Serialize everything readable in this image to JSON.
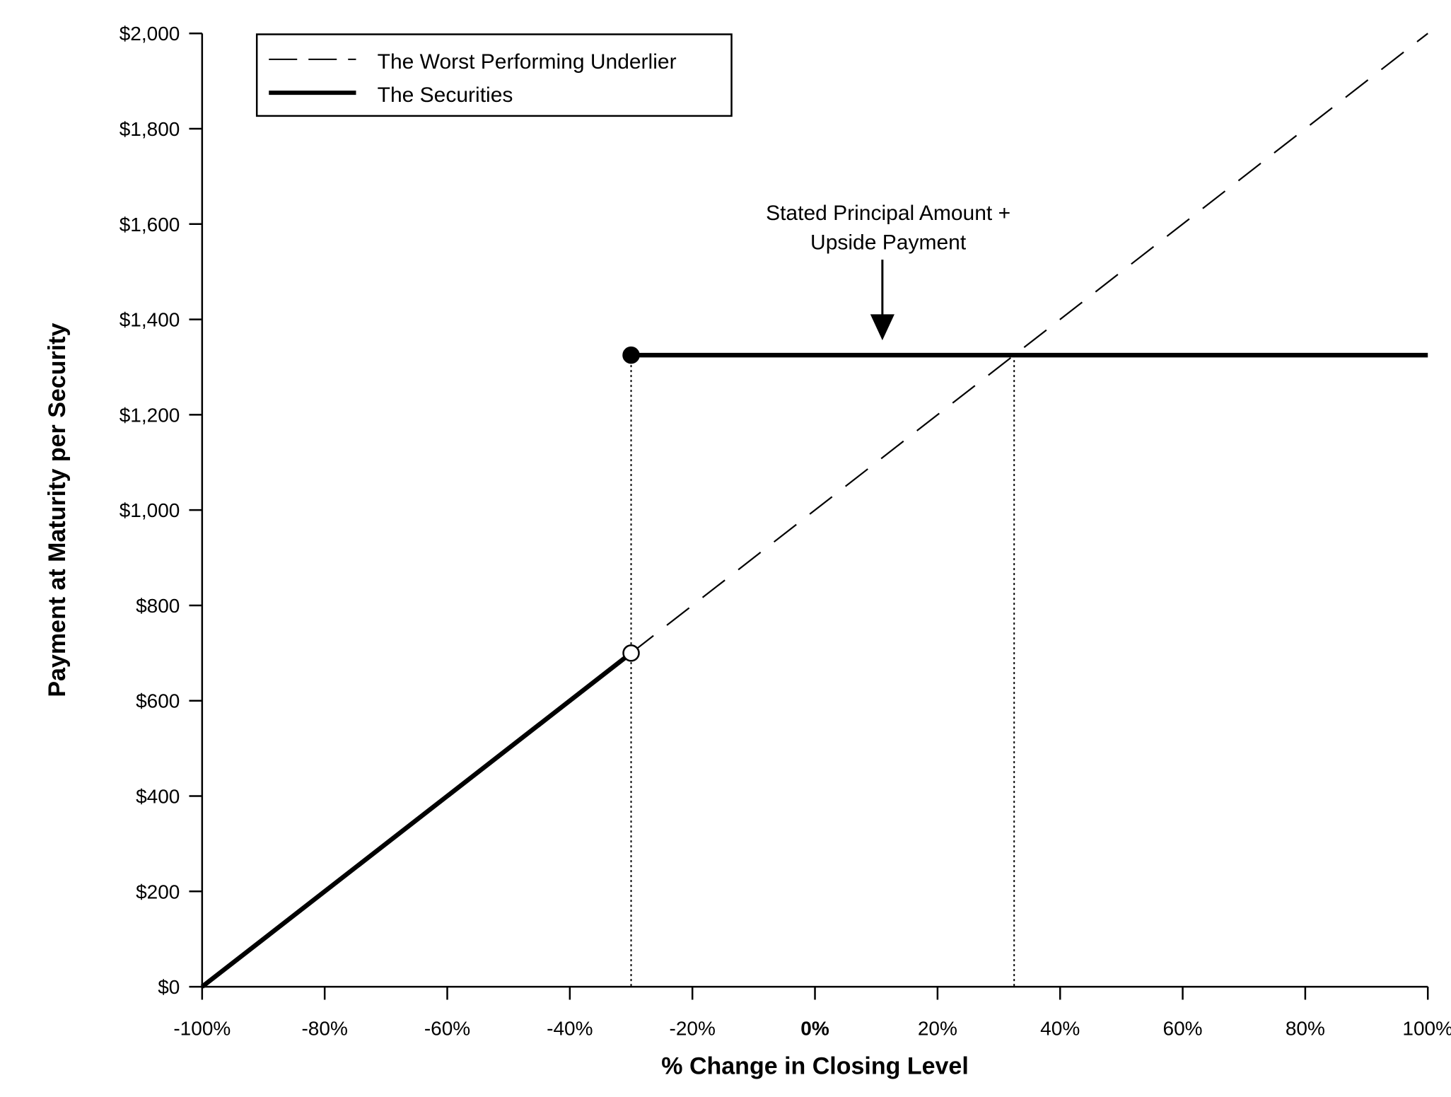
{
  "chart_data": {
    "type": "line",
    "title": "",
    "xlabel": "% Change in Closing Level",
    "ylabel": "Payment at Maturity per Security",
    "xlim": [
      -100,
      100
    ],
    "ylim": [
      0,
      2000
    ],
    "x_ticks": [
      {
        "value": -100,
        "label": "-100%"
      },
      {
        "value": -80,
        "label": "-80%"
      },
      {
        "value": -60,
        "label": "-60%"
      },
      {
        "value": -40,
        "label": "-40%"
      },
      {
        "value": -20,
        "label": "-20%"
      },
      {
        "value": 0,
        "label": "0%",
        "bold": true
      },
      {
        "value": 20,
        "label": "20%"
      },
      {
        "value": 40,
        "label": "40%"
      },
      {
        "value": 60,
        "label": "60%"
      },
      {
        "value": 80,
        "label": "80%"
      },
      {
        "value": 100,
        "label": "100%"
      }
    ],
    "y_ticks": [
      {
        "value": 0,
        "label": "$0"
      },
      {
        "value": 200,
        "label": "$200"
      },
      {
        "value": 400,
        "label": "$400"
      },
      {
        "value": 600,
        "label": "$600"
      },
      {
        "value": 800,
        "label": "$800"
      },
      {
        "value": 1000,
        "label": "$1,000"
      },
      {
        "value": 1200,
        "label": "$1,200"
      },
      {
        "value": 1400,
        "label": "$1,400"
      },
      {
        "value": 1600,
        "label": "$1,600"
      },
      {
        "value": 1800,
        "label": "$1,800"
      },
      {
        "value": 2000,
        "label": "$2,000"
      }
    ],
    "grid": false,
    "legend_position": "top-left",
    "series": [
      {
        "name": "The Worst Performing Underlier",
        "style": "dashed",
        "color": "#000000",
        "points": [
          {
            "x": -30,
            "y": 700
          },
          {
            "x": 100,
            "y": 2000
          }
        ]
      },
      {
        "name": "The Securities",
        "style": "solid-thick",
        "color": "#000000",
        "segments": [
          [
            {
              "x": -100,
              "y": 0
            },
            {
              "x": -30,
              "y": 700
            }
          ],
          [
            {
              "x": -30,
              "y": 1325
            },
            {
              "x": 100,
              "y": 1325
            }
          ]
        ]
      }
    ],
    "markers": [
      {
        "x": -30,
        "y": 1325,
        "style": "filled"
      },
      {
        "x": -30,
        "y": 700,
        "style": "open"
      }
    ],
    "reference_lines": [
      {
        "x": -30,
        "y_from": 0,
        "y_to": 1325,
        "style": "dotted"
      },
      {
        "x": 32.5,
        "y_from": 0,
        "y_to": 1325,
        "style": "dotted"
      }
    ],
    "annotations": [
      {
        "lines": [
          "Stated Principal Amount +",
          "Upside Payment"
        ],
        "arrow_to": {
          "x": 11,
          "y": 1325
        }
      }
    ]
  }
}
